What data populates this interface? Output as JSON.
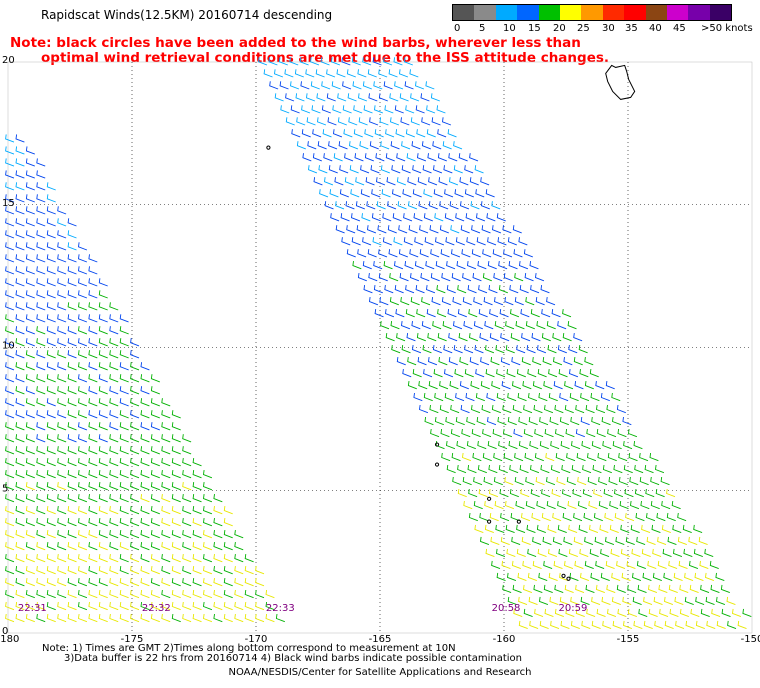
{
  "header": {
    "title": "Rapidscat Winds(12.5KM) 20160714 descending",
    "note_line1": "Note: black circles have been added to the wind barbs, wherever less than",
    "note_line2": "optimal wind retrieval conditions are met due to the ISS attitude changes."
  },
  "scale": {
    "labels": [
      "0",
      "5",
      "10",
      "15",
      "20",
      "25",
      "30",
      "35",
      "40",
      "45",
      ">50 knots"
    ],
    "colors": [
      "#555555",
      "#8a8a8a",
      "#00aaff",
      "#0066ff",
      "#00c000",
      "#ffff00",
      "#ff9900",
      "#ff2a00",
      "#ff0000",
      "#8b4513",
      "#cc00cc",
      "#7700aa",
      "#3a0066"
    ]
  },
  "map": {
    "lon_labels": [
      "-180",
      "-175",
      "-170",
      "-165",
      "-160",
      "-155",
      "-150"
    ],
    "lat_labels": [
      "20",
      "15",
      "10",
      "5",
      "0"
    ],
    "time_labels": [
      {
        "text": "22:31",
        "lon": -179.6
      },
      {
        "text": "22:32",
        "lon": -174.6
      },
      {
        "text": "22:33",
        "lon": -169.6
      },
      {
        "text": "20:58",
        "lon": -160.5
      },
      {
        "text": "20:59",
        "lon": -157.8
      }
    ],
    "colors": {
      "grid": "#000000",
      "coast": "#000000",
      "time_label": "#800080"
    }
  },
  "footer": {
    "line1": "Note: 1) Times are GMT 2)Times along bottom correspond to measurement at 10N",
    "line2": "3)Data buffer is 22 hrs from 20160714 4) Black wind barbs indicate possible contamination",
    "line3": "NOAA/NESDIS/Center for Satellite Applications and Research"
  }
}
